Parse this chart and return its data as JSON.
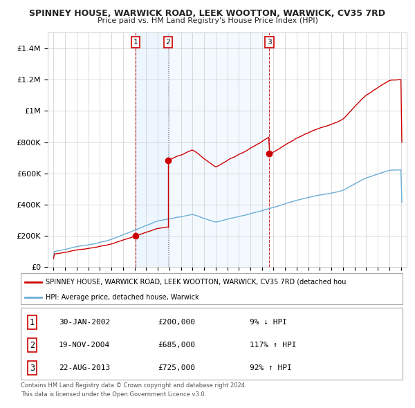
{
  "title1": "SPINNEY HOUSE, WARWICK ROAD, LEEK WOOTTON, WARWICK, CV35 7RD",
  "title2": "Price paid vs. HM Land Registry's House Price Index (HPI)",
  "legend_line1": "SPINNEY HOUSE, WARWICK ROAD, LEEK WOOTTON, WARWICK, CV35 7RD (detached hou",
  "legend_line2": "HPI: Average price, detached house, Warwick",
  "footer1": "Contains HM Land Registry data © Crown copyright and database right 2024.",
  "footer2": "This data is licensed under the Open Government Licence v3.0.",
  "sale_points": [
    {
      "label": "1",
      "date": "30-JAN-2002",
      "price": 200000,
      "x": 2002.08,
      "pct": "9% ↓ HPI"
    },
    {
      "label": "2",
      "date": "19-NOV-2004",
      "price": 685000,
      "x": 2004.89,
      "pct": "117% ↑ HPI"
    },
    {
      "label": "3",
      "date": "22-AUG-2013",
      "price": 725000,
      "x": 2013.64,
      "pct": "92% ↑ HPI"
    }
  ],
  "hpi_color": "#6baed6",
  "price_color": "#cc0000",
  "shade_color": "#ddeeff",
  "bg_color": "#ffffff",
  "grid_color": "#cccccc",
  "ylim": [
    0,
    1500000
  ],
  "xlim_start": 1994.5,
  "xlim_end": 2025.5
}
